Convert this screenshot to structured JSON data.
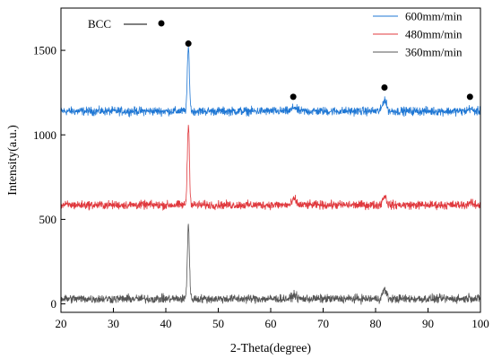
{
  "chart_data": {
    "type": "line",
    "xlabel": "2-Theta(degree)",
    "ylabel": "Intensity(a.u.)",
    "xlim": [
      20,
      100
    ],
    "ylim": [
      -50,
      1750
    ],
    "xticks": [
      20,
      30,
      40,
      50,
      60,
      70,
      80,
      90,
      100
    ],
    "yticks": [
      0,
      500,
      1000,
      1500
    ],
    "grid": false,
    "legend_position": "top-right",
    "series": [
      {
        "name": "600mm/min",
        "color": "#1f77d4",
        "baseline": 1140,
        "noise": 18,
        "peaks": [
          {
            "x": 44.3,
            "height": 375
          },
          {
            "x": 64.5,
            "height": 25
          },
          {
            "x": 81.7,
            "height": 70
          },
          {
            "x": 98.0,
            "height": 15
          }
        ]
      },
      {
        "name": "480mm/min",
        "color": "#e0393e",
        "baseline": 585,
        "noise": 18,
        "peaks": [
          {
            "x": 44.3,
            "height": 475
          },
          {
            "x": 64.5,
            "height": 35
          },
          {
            "x": 81.7,
            "height": 55
          },
          {
            "x": 98.0,
            "height": 15
          }
        ]
      },
      {
        "name": "360mm/min",
        "color": "#555555",
        "baseline": 30,
        "noise": 18,
        "peaks": [
          {
            "x": 44.3,
            "height": 435
          },
          {
            "x": 64.5,
            "height": 25
          },
          {
            "x": 81.7,
            "height": 55
          },
          {
            "x": 98.0,
            "height": 10
          }
        ]
      }
    ],
    "annotations": {
      "phase_label": "BCC",
      "marker_color": "#000000",
      "phase_markers": [
        {
          "x": 44.3,
          "y": 1540
        },
        {
          "x": 64.3,
          "y": 1225
        },
        {
          "x": 81.7,
          "y": 1280
        },
        {
          "x": 98.0,
          "y": 1225
        }
      ]
    }
  }
}
